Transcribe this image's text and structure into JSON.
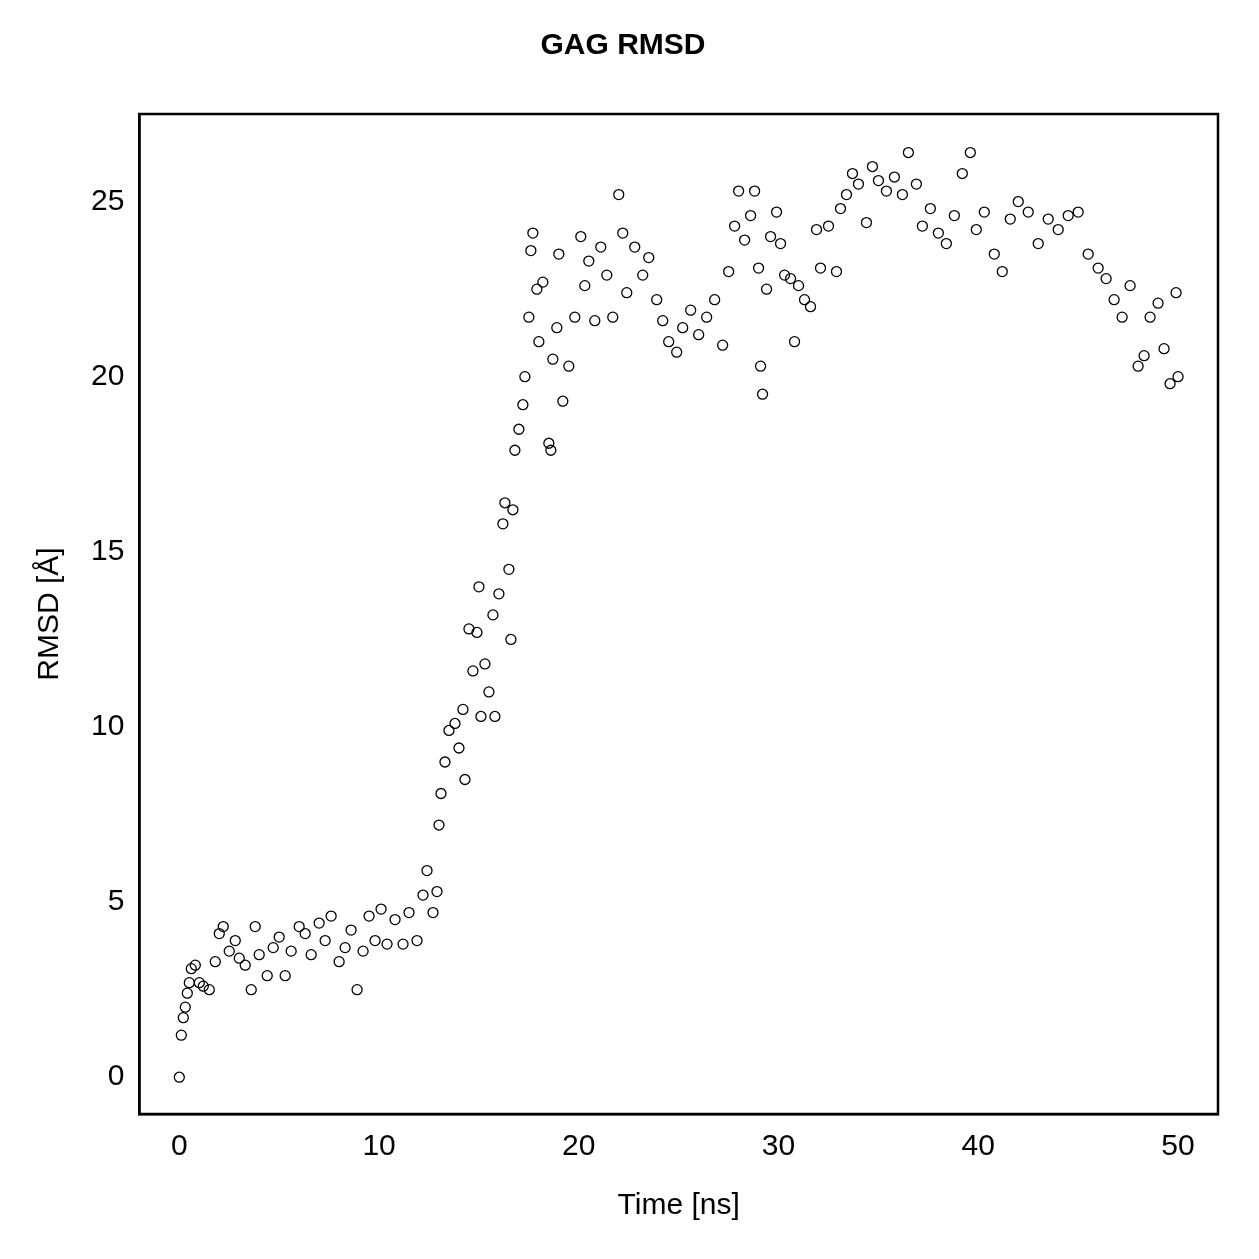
{
  "chart_data": {
    "type": "scatter",
    "title": "GAG RMSD",
    "xlabel": "Time [ns]",
    "ylabel": "RMSD [Å]",
    "xlim": [
      -2,
      52
    ],
    "xticks": [
      0,
      10,
      20,
      30,
      40,
      50
    ],
    "ylim": [
      -1.05,
      27.5
    ],
    "yticks": [
      0,
      5,
      10,
      15,
      20,
      25
    ],
    "grid": false,
    "legend": false,
    "marker": "circle",
    "series": [
      {
        "color": "#000000",
        "x": [
          0,
          0.1,
          0.2,
          0.3,
          0.4,
          0.5,
          0.6,
          0.8,
          1.0,
          1.2,
          1.5,
          1.8,
          2.0,
          2.2,
          2.5,
          2.8,
          3.0,
          3.3,
          3.6,
          3.8,
          4.0,
          4.4,
          4.7,
          5.0,
          5.3,
          5.6,
          6.0,
          6.3,
          6.6,
          7.0,
          7.3,
          7.6,
          8.0,
          8.3,
          8.6,
          8.9,
          9.2,
          9.5,
          9.8,
          10.1,
          10.4,
          10.8,
          11.2,
          11.5,
          11.9,
          12.2,
          12.4,
          12.7,
          12.9,
          13.0,
          13.1,
          13.3,
          13.5,
          13.8,
          14.0,
          14.2,
          14.3,
          14.5,
          14.7,
          14.9,
          15.0,
          15.1,
          15.3,
          15.5,
          15.7,
          15.8,
          16.0,
          16.2,
          16.3,
          16.5,
          16.6,
          16.7,
          16.8,
          17.0,
          17.2,
          17.3,
          17.5,
          17.6,
          17.7,
          17.9,
          18.0,
          18.2,
          18.5,
          18.6,
          18.7,
          18.9,
          19.0,
          19.2,
          19.5,
          19.8,
          20.1,
          20.3,
          20.5,
          20.8,
          21.1,
          21.4,
          21.7,
          22.0,
          22.2,
          22.4,
          22.8,
          23.2,
          23.5,
          23.9,
          24.2,
          24.5,
          24.9,
          25.2,
          25.6,
          26.0,
          26.4,
          26.8,
          27.2,
          27.5,
          27.8,
          28.0,
          28.3,
          28.6,
          28.8,
          29.0,
          29.1,
          29.2,
          29.4,
          29.6,
          29.9,
          30.1,
          30.3,
          30.6,
          30.8,
          31.0,
          31.3,
          31.6,
          31.9,
          32.1,
          32.5,
          32.9,
          33.1,
          33.4,
          33.7,
          34.0,
          34.4,
          34.7,
          35.0,
          35.4,
          35.8,
          36.2,
          36.5,
          36.9,
          37.2,
          37.6,
          38.0,
          38.4,
          38.8,
          39.2,
          39.6,
          39.9,
          40.3,
          40.8,
          41.2,
          41.6,
          42.0,
          42.5,
          43.0,
          43.5,
          44.0,
          44.5,
          45.0,
          45.5,
          46.0,
          46.4,
          46.8,
          47.2,
          47.6,
          48.0,
          48.3,
          48.6,
          49.0,
          49.3,
          49.6,
          49.9,
          50.0
        ],
        "values": [
          0,
          1.2,
          1.7,
          2.0,
          2.4,
          2.7,
          3.1,
          3.2,
          2.7,
          2.6,
          2.5,
          3.3,
          4.1,
          4.3,
          3.6,
          3.9,
          3.4,
          3.2,
          2.5,
          4.3,
          3.5,
          2.9,
          3.7,
          4.0,
          2.9,
          3.6,
          4.3,
          4.1,
          3.5,
          4.4,
          3.9,
          4.6,
          3.3,
          3.7,
          4.2,
          2.5,
          3.6,
          4.6,
          3.9,
          4.8,
          3.8,
          4.5,
          3.8,
          4.7,
          3.9,
          5.2,
          5.9,
          4.7,
          5.3,
          7.2,
          8.1,
          9.0,
          9.9,
          10.1,
          9.4,
          10.5,
          8.5,
          12.8,
          11.6,
          12.7,
          14.0,
          10.3,
          11.8,
          11.0,
          13.2,
          10.3,
          13.8,
          15.8,
          16.4,
          14.5,
          12.5,
          16.2,
          17.9,
          18.5,
          19.2,
          20.0,
          21.7,
          23.6,
          24.1,
          22.5,
          21.0,
          22.7,
          18.1,
          17.9,
          20.5,
          21.4,
          23.5,
          19.3,
          20.3,
          21.7,
          24.0,
          22.6,
          23.3,
          21.6,
          23.7,
          22.9,
          21.7,
          25.2,
          24.1,
          22.4,
          23.7,
          22.9,
          23.4,
          22.2,
          21.6,
          21.0,
          20.7,
          21.4,
          21.9,
          21.2,
          21.7,
          22.2,
          20.9,
          23.0,
          24.3,
          25.3,
          23.9,
          24.6,
          25.3,
          23.1,
          20.3,
          19.5,
          22.5,
          24.0,
          24.7,
          23.8,
          22.9,
          22.8,
          21.0,
          22.6,
          22.2,
          22.0,
          24.2,
          23.1,
          24.3,
          23.0,
          24.8,
          25.2,
          25.8,
          25.5,
          24.4,
          26.0,
          25.6,
          25.3,
          25.7,
          25.2,
          26.4,
          25.5,
          24.3,
          24.8,
          24.1,
          23.8,
          24.6,
          25.8,
          26.4,
          24.2,
          24.7,
          23.5,
          23.0,
          24.5,
          25.0,
          24.7,
          23.8,
          24.5,
          24.2,
          24.6,
          24.7,
          23.5,
          23.1,
          22.8,
          22.2,
          21.7,
          22.6,
          20.3,
          20.6,
          21.7,
          22.1,
          20.8,
          19.8,
          22.4,
          20.0
        ]
      }
    ]
  }
}
